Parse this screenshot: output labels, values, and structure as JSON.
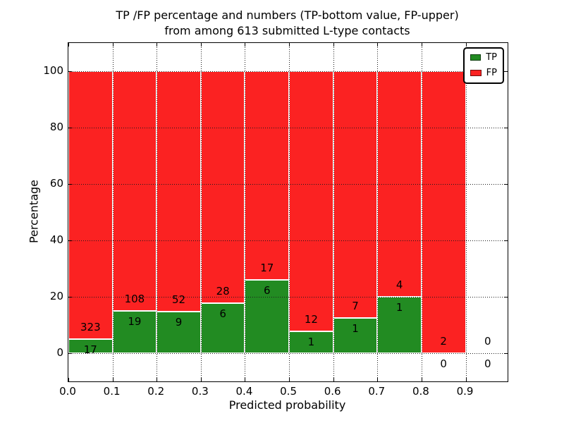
{
  "title": {
    "line1": "TP /FP percentage and numbers (TP-bottom value, FP-upper)",
    "line2": "from among 613 submitted L-type contacts"
  },
  "axes": {
    "xlabel": "Predicted probability",
    "ylabel": "Percentage",
    "xtick_labels": [
      "0.0",
      "0.1",
      "0.2",
      "0.3",
      "0.4",
      "0.5",
      "0.6",
      "0.7",
      "0.8",
      "0.9"
    ],
    "ytick_labels": [
      "0",
      "20",
      "40",
      "60",
      "80",
      "100"
    ],
    "ytick_values": [
      0,
      20,
      40,
      60,
      80,
      100
    ],
    "xlim": [
      0.0,
      0.995
    ],
    "ylim": [
      -10,
      110
    ],
    "grid": "dotted"
  },
  "legend": {
    "position": "upper right",
    "items": [
      {
        "label": "TP",
        "color": "#228B22"
      },
      {
        "label": "FP",
        "color": "#FB2222"
      }
    ]
  },
  "chart_data": {
    "type": "bar",
    "stacked": true,
    "normalized": "each bar totals 100%",
    "title": "TP /FP percentage and numbers (TP-bottom value, FP-upper) from among 613 submitted L-type contacts",
    "xlabel": "Predicted probability",
    "ylabel": "Percentage",
    "bin_width": 0.1,
    "categories": [
      "0.0-0.1",
      "0.1-0.2",
      "0.2-0.3",
      "0.3-0.4",
      "0.4-0.5",
      "0.5-0.6",
      "0.6-0.7",
      "0.7-0.8",
      "0.8-0.9",
      "0.9-1.0"
    ],
    "series": [
      {
        "name": "TP",
        "color": "#228B22",
        "counts": [
          17,
          19,
          9,
          6,
          6,
          1,
          1,
          1,
          0,
          0
        ]
      },
      {
        "name": "FP",
        "color": "#FB2222",
        "counts": [
          323,
          108,
          52,
          28,
          17,
          12,
          7,
          4,
          2,
          0
        ]
      }
    ],
    "tp_percent_of_bin": [
      5.0,
      14.96,
      14.75,
      17.65,
      26.09,
      7.69,
      12.5,
      20.0,
      0.0,
      null
    ],
    "total_contacts": 613,
    "label_convention": "FP count printed above the TP/FP boundary, TP count printed below it"
  }
}
